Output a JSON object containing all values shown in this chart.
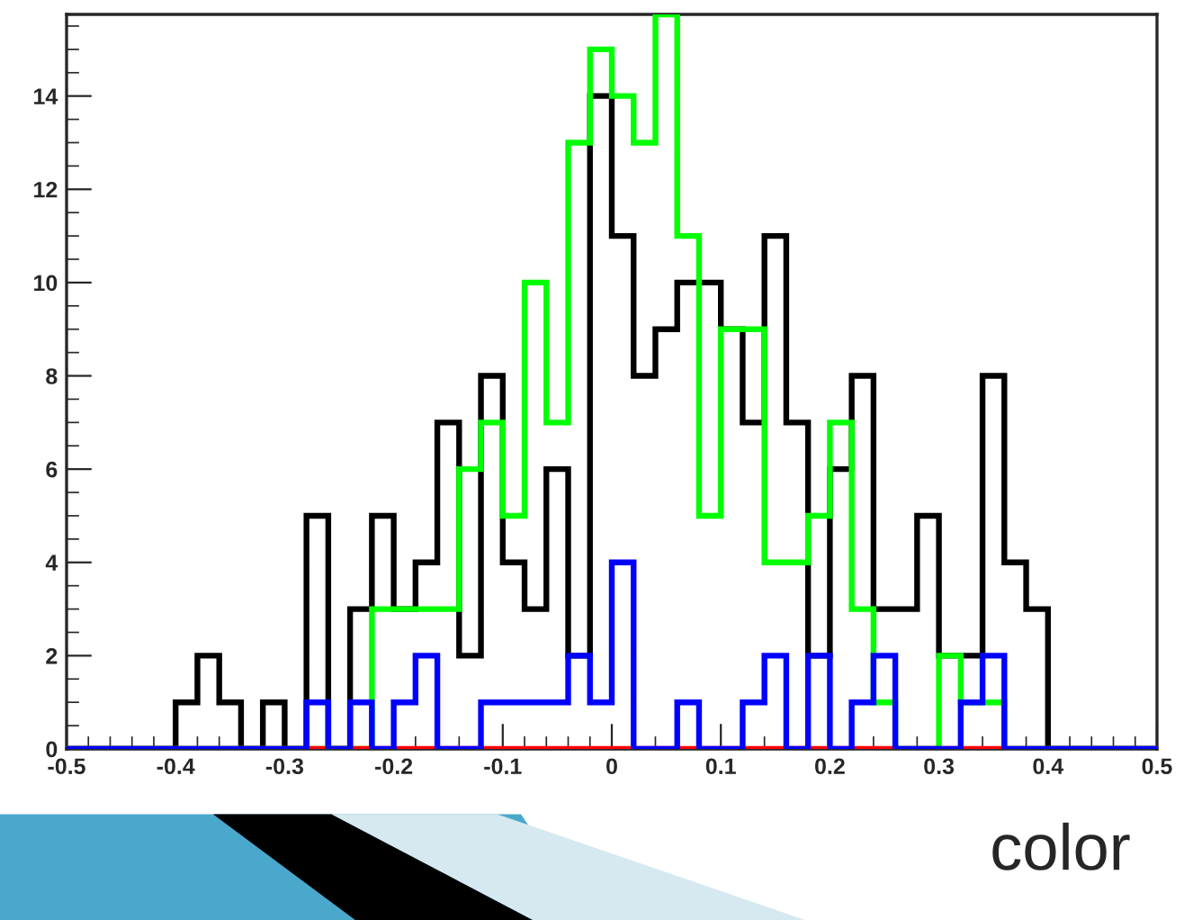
{
  "chart_data": {
    "type": "histogram",
    "bins": [
      -0.5,
      -0.48,
      -0.46,
      -0.44,
      -0.42,
      -0.4,
      -0.38,
      -0.36,
      -0.34,
      -0.32,
      -0.3,
      -0.28,
      -0.26,
      -0.24,
      -0.22,
      -0.2,
      -0.18,
      -0.16,
      -0.14,
      -0.12,
      -0.1,
      -0.08,
      -0.06,
      -0.04,
      -0.02,
      0,
      0.02,
      0.04,
      0.06,
      0.08,
      0.1,
      0.12,
      0.14,
      0.16,
      0.18,
      0.2,
      0.22,
      0.24,
      0.26,
      0.28,
      0.3,
      0.32,
      0.34,
      0.36,
      0.38,
      0.4,
      0.42,
      0.44,
      0.46,
      0.48,
      0.5
    ],
    "series": [
      {
        "color": "#000000",
        "values": [
          0,
          0,
          0,
          0,
          0,
          1,
          2,
          1,
          0,
          1,
          0,
          5,
          0,
          3,
          5,
          3,
          4,
          7,
          2,
          8,
          4,
          3,
          6,
          2,
          14,
          11,
          8,
          9,
          10,
          10,
          9,
          7,
          11,
          7,
          2,
          6,
          8,
          3,
          3,
          5,
          2,
          2,
          8,
          4,
          3,
          0,
          0,
          0,
          0,
          0
        ]
      },
      {
        "color": "#00ff00",
        "values": [
          0,
          0,
          0,
          0,
          0,
          0,
          0,
          0,
          0,
          0,
          0,
          0,
          0,
          0,
          3,
          3,
          3,
          3,
          6,
          7,
          5,
          10,
          7,
          13,
          15,
          14,
          13,
          15.75,
          11,
          5,
          9,
          9,
          4,
          4,
          5,
          7,
          3,
          1,
          0,
          0,
          2,
          1,
          1,
          0,
          0,
          0,
          0,
          0,
          0,
          0
        ]
      },
      {
        "color": "#ff0000",
        "values": [
          0,
          0,
          0,
          0,
          0,
          0,
          0,
          0,
          0,
          0,
          0,
          0,
          0,
          0,
          0,
          0,
          0,
          0,
          0,
          0,
          0,
          0,
          0,
          0,
          0,
          0,
          0,
          0,
          0,
          0,
          0,
          0,
          0,
          0,
          0,
          0,
          0,
          0,
          0,
          0,
          0,
          0,
          0,
          0,
          0,
          0,
          0,
          0,
          0,
          0
        ]
      },
      {
        "color": "#0000ff",
        "values": [
          0,
          0,
          0,
          0,
          0,
          0,
          0,
          0,
          0,
          0,
          0,
          1,
          0,
          1,
          0,
          1,
          2,
          0,
          0,
          1,
          1,
          1,
          1,
          2,
          1,
          4,
          0,
          0,
          1,
          0,
          0,
          1,
          2,
          0,
          2,
          0,
          1,
          2,
          0,
          0,
          0,
          1,
          2,
          0,
          0,
          0,
          0,
          0,
          0,
          0
        ]
      }
    ],
    "xlim": [
      -0.5,
      0.5
    ],
    "ylim": [
      0,
      15.75
    ],
    "xticks": [
      -0.5,
      -0.4,
      -0.3,
      -0.2,
      -0.1,
      0,
      0.1,
      0.2,
      0.3,
      0.4,
      0.5
    ],
    "yticks": [
      0,
      2,
      4,
      6,
      8,
      10,
      12,
      14
    ],
    "grid": false,
    "legend": false,
    "annotations": [
      "color"
    ]
  }
}
